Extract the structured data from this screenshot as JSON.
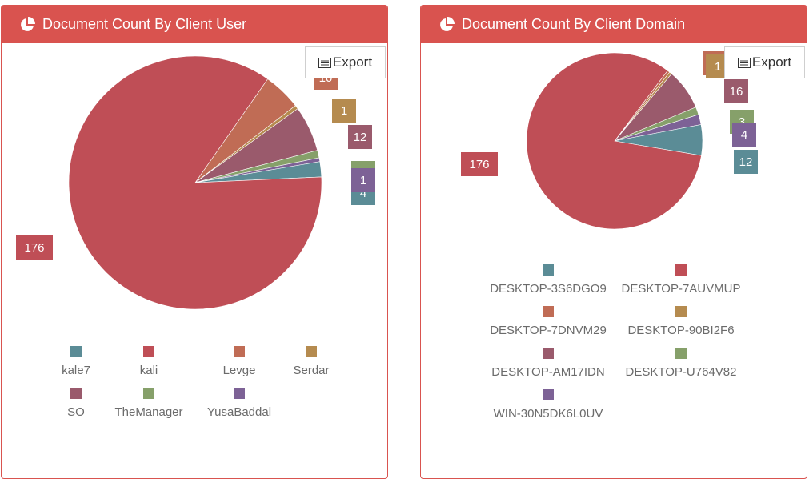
{
  "colors": {
    "header_bg": "#d9534f",
    "teal": "#5b8c96",
    "red": "#bf4e56",
    "orange": "#c06c55",
    "gold": "#b58b4f",
    "mauve": "#9a5a6c",
    "green": "#86a06a",
    "purple": "#7d6296"
  },
  "panels": [
    {
      "title": "Document Count By Client User",
      "export_label": "Export",
      "icon": "pie-chart-icon",
      "export_icon": "list-icon"
    },
    {
      "title": "Document Count By Client Domain",
      "export_label": "Export",
      "icon": "pie-chart-icon",
      "export_icon": "list-icon"
    }
  ],
  "chart_data": [
    {
      "type": "pie",
      "title": "Document Count By Client User",
      "legend_position": "bottom",
      "slices": [
        {
          "label": "kale7",
          "value": 4,
          "color": "#5b8c96"
        },
        {
          "label": "kali",
          "value": 176,
          "color": "#bf4e56"
        },
        {
          "label": "Levge",
          "value": 10,
          "color": "#c06c55"
        },
        {
          "label": "Serdar",
          "value": 1,
          "color": "#b58b4f"
        },
        {
          "label": "SO",
          "value": 12,
          "color": "#9a5a6c"
        },
        {
          "label": "TheManager",
          "value": 2,
          "color": "#86a06a"
        },
        {
          "label": "YusaBaddal",
          "value": 1,
          "color": "#7d6296"
        }
      ]
    },
    {
      "type": "pie",
      "title": "Document Count By Client Domain",
      "legend_position": "bottom",
      "slices": [
        {
          "label": "DESKTOP-3S6DGO9",
          "value": 12,
          "color": "#5b8c96"
        },
        {
          "label": "DESKTOP-7AUVMUP",
          "value": 176,
          "color": "#bf4e56"
        },
        {
          "label": "DESKTOP-7DNVM29",
          "value": 1,
          "color": "#c06c55"
        },
        {
          "label": "DESKTOP-90BI2F6",
          "value": 1,
          "color": "#b58b4f"
        },
        {
          "label": "DESKTOP-AM17IDN",
          "value": 16,
          "color": "#9a5a6c"
        },
        {
          "label": "DESKTOP-U764V82",
          "value": 3,
          "color": "#86a06a"
        },
        {
          "label": "WIN-30N5DK6L0UV",
          "value": 4,
          "color": "#7d6296"
        }
      ]
    }
  ]
}
